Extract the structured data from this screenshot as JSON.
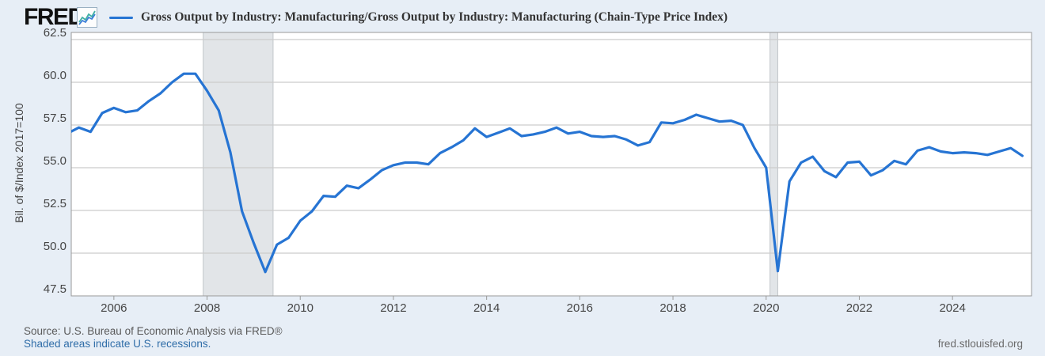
{
  "header": {
    "logo": "FRED",
    "logo_mark": "®",
    "legend": "Gross Output by Industry: Manufacturing/Gross Output by Industry: Manufacturing (Chain-Type Price Index)"
  },
  "footer": {
    "source": "Source: U.S. Bureau of Economic Analysis via FRED®",
    "note": "Shaded areas indicate U.S. recessions.",
    "url": "fred.stlouisfed.org"
  },
  "colors": {
    "background": "#e7eef6",
    "plot_background": "#ffffff",
    "line": "#2674d3",
    "gridline": "#cccccc",
    "plot_border": "#999999",
    "recession_fill": "#e2e5e8",
    "recession_edge": "#c2c6ca",
    "tick_text": "#454545",
    "link_blue": "#2f6da8"
  },
  "chart_data": {
    "type": "line",
    "title": "Gross Output by Industry: Manufacturing/Gross Output by Industry: Manufacturing (Chain-Type Price Index)",
    "ylabel": "Bil. of $/Index 2017=100",
    "xlabel": "",
    "grid": "horizontal-only",
    "legend_position": "top-left",
    "y_ticks": [
      "47.5",
      "50.0",
      "52.5",
      "55.0",
      "57.5",
      "60.0",
      "62.5"
    ],
    "x_ticks": [
      2006,
      2008,
      2010,
      2012,
      2014,
      2016,
      2018,
      2020,
      2022,
      2024
    ],
    "ylim": [
      47.5,
      62.9
    ],
    "xlim": [
      2005.08,
      2025.8
    ],
    "recessions": [
      {
        "start": 2007.917,
        "end": 2009.417
      },
      {
        "start": 2020.083,
        "end": 2020.25
      }
    ],
    "series": [
      {
        "name": "Gross Output by Industry: Manufacturing/Gross Output by Industry: Manufacturing (Chain-Type Price Index)",
        "frequency": "quarterly",
        "start_year": 2005,
        "values": [
          57.0,
          57.35,
          57.1,
          58.2,
          58.5,
          58.25,
          58.35,
          58.9,
          59.35,
          60.0,
          60.5,
          60.5,
          59.5,
          58.35,
          55.9,
          52.45,
          50.6,
          48.9,
          50.5,
          50.9,
          51.9,
          52.45,
          53.35,
          53.3,
          53.95,
          53.8,
          54.3,
          54.85,
          55.15,
          55.3,
          55.3,
          55.2,
          55.85,
          56.2,
          56.6,
          57.3,
          56.8,
          57.05,
          57.3,
          56.85,
          56.95,
          57.1,
          57.35,
          57.0,
          57.1,
          56.85,
          56.8,
          56.85,
          56.65,
          56.3,
          56.5,
          57.65,
          57.6,
          57.8,
          58.1,
          57.9,
          57.7,
          57.75,
          57.5,
          56.15,
          55.0,
          48.95,
          54.2,
          55.3,
          55.65,
          54.8,
          54.45,
          55.3,
          55.35,
          54.55,
          54.85,
          55.4,
          55.2,
          56.0,
          56.2,
          55.95,
          55.85,
          55.9,
          55.85,
          55.75,
          55.95,
          56.15,
          55.7
        ]
      }
    ]
  }
}
